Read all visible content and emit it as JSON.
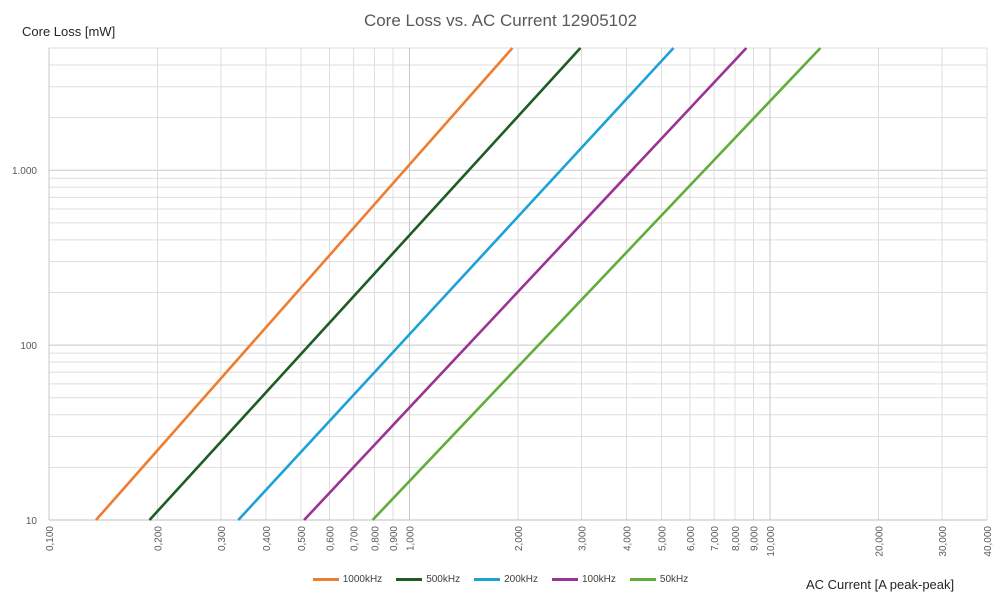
{
  "chart_data": {
    "type": "line",
    "title": "Core Loss vs. AC Current 12905102",
    "xlabel": "AC Current [A peak-peak]",
    "ylabel": "Core Loss [mW]",
    "x_scale": "log",
    "y_scale": "log",
    "xlim": [
      0.1,
      40
    ],
    "ylim": [
      10,
      5000
    ],
    "grid": true,
    "legend_position": "bottom",
    "x_ticks": [
      {
        "value": 0.1,
        "label": "0,100"
      },
      {
        "value": 0.2,
        "label": "0,200"
      },
      {
        "value": 0.3,
        "label": "0,300"
      },
      {
        "value": 0.4,
        "label": "0,400"
      },
      {
        "value": 0.5,
        "label": "0,500"
      },
      {
        "value": 0.6,
        "label": "0,600"
      },
      {
        "value": 0.7,
        "label": "0,700"
      },
      {
        "value": 0.8,
        "label": "0,800"
      },
      {
        "value": 0.9,
        "label": "0,900"
      },
      {
        "value": 1,
        "label": "1,000"
      },
      {
        "value": 2,
        "label": "2,000"
      },
      {
        "value": 3,
        "label": "3,000"
      },
      {
        "value": 4,
        "label": "4,000"
      },
      {
        "value": 5,
        "label": "5,000"
      },
      {
        "value": 6,
        "label": "6,000"
      },
      {
        "value": 7,
        "label": "7,000"
      },
      {
        "value": 8,
        "label": "8,000"
      },
      {
        "value": 9,
        "label": "9,000"
      },
      {
        "value": 10,
        "label": "10,000"
      },
      {
        "value": 20,
        "label": "20,000"
      },
      {
        "value": 30,
        "label": "30,000"
      },
      {
        "value": 40,
        "label": "40,000"
      }
    ],
    "y_ticks": [
      {
        "value": 10,
        "label": "10"
      },
      {
        "value": 100,
        "label": "100"
      },
      {
        "value": 1000,
        "label": "1.000"
      }
    ],
    "series": [
      {
        "name": "1000kHz",
        "color": "#ed7d31",
        "x": [
          0.135,
          1.93
        ],
        "y": [
          10,
          5000
        ]
      },
      {
        "name": "500kHz",
        "color": "#1e5c24",
        "x": [
          0.19,
          2.98
        ],
        "y": [
          10,
          5000
        ]
      },
      {
        "name": "200kHz",
        "color": "#1ca2d6",
        "x": [
          0.335,
          5.4
        ],
        "y": [
          10,
          5000
        ]
      },
      {
        "name": "100kHz",
        "color": "#9b3393",
        "x": [
          0.51,
          8.6
        ],
        "y": [
          10,
          5000
        ]
      },
      {
        "name": "50kHz",
        "color": "#62ad3a",
        "x": [
          0.79,
          13.8
        ],
        "y": [
          10,
          5000
        ]
      }
    ]
  }
}
